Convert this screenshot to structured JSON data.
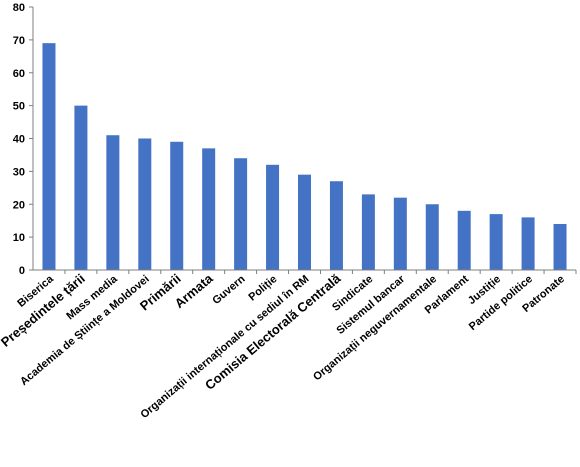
{
  "chart_data": {
    "type": "bar",
    "title": "",
    "xlabel": "",
    "ylabel": "",
    "ylim": [
      0,
      80
    ],
    "yticks": [
      0,
      10,
      20,
      30,
      40,
      50,
      60,
      70,
      80
    ],
    "grid": false,
    "legend": "none",
    "bar_color": "#4472c4",
    "categories": [
      "Biserica",
      "Președintele țării",
      "Mass media",
      "Academia de Științe a Moldovei",
      "Primării",
      "Armata",
      "Guvern",
      "Poliție",
      "Organizații internaționale cu sediul în RM",
      "Comisia Electorală Centrală",
      "Sindicate",
      "Sistemul bancar",
      "Organizații neguvernamentale",
      "Parlament",
      "Justiție",
      "Partide politice",
      "Patronate"
    ],
    "emphasized_categories": [
      1,
      4,
      5,
      9
    ],
    "values": [
      69,
      50,
      41,
      40,
      39,
      37,
      34,
      32,
      29,
      27,
      23,
      22,
      20,
      18,
      17,
      16,
      14
    ]
  }
}
